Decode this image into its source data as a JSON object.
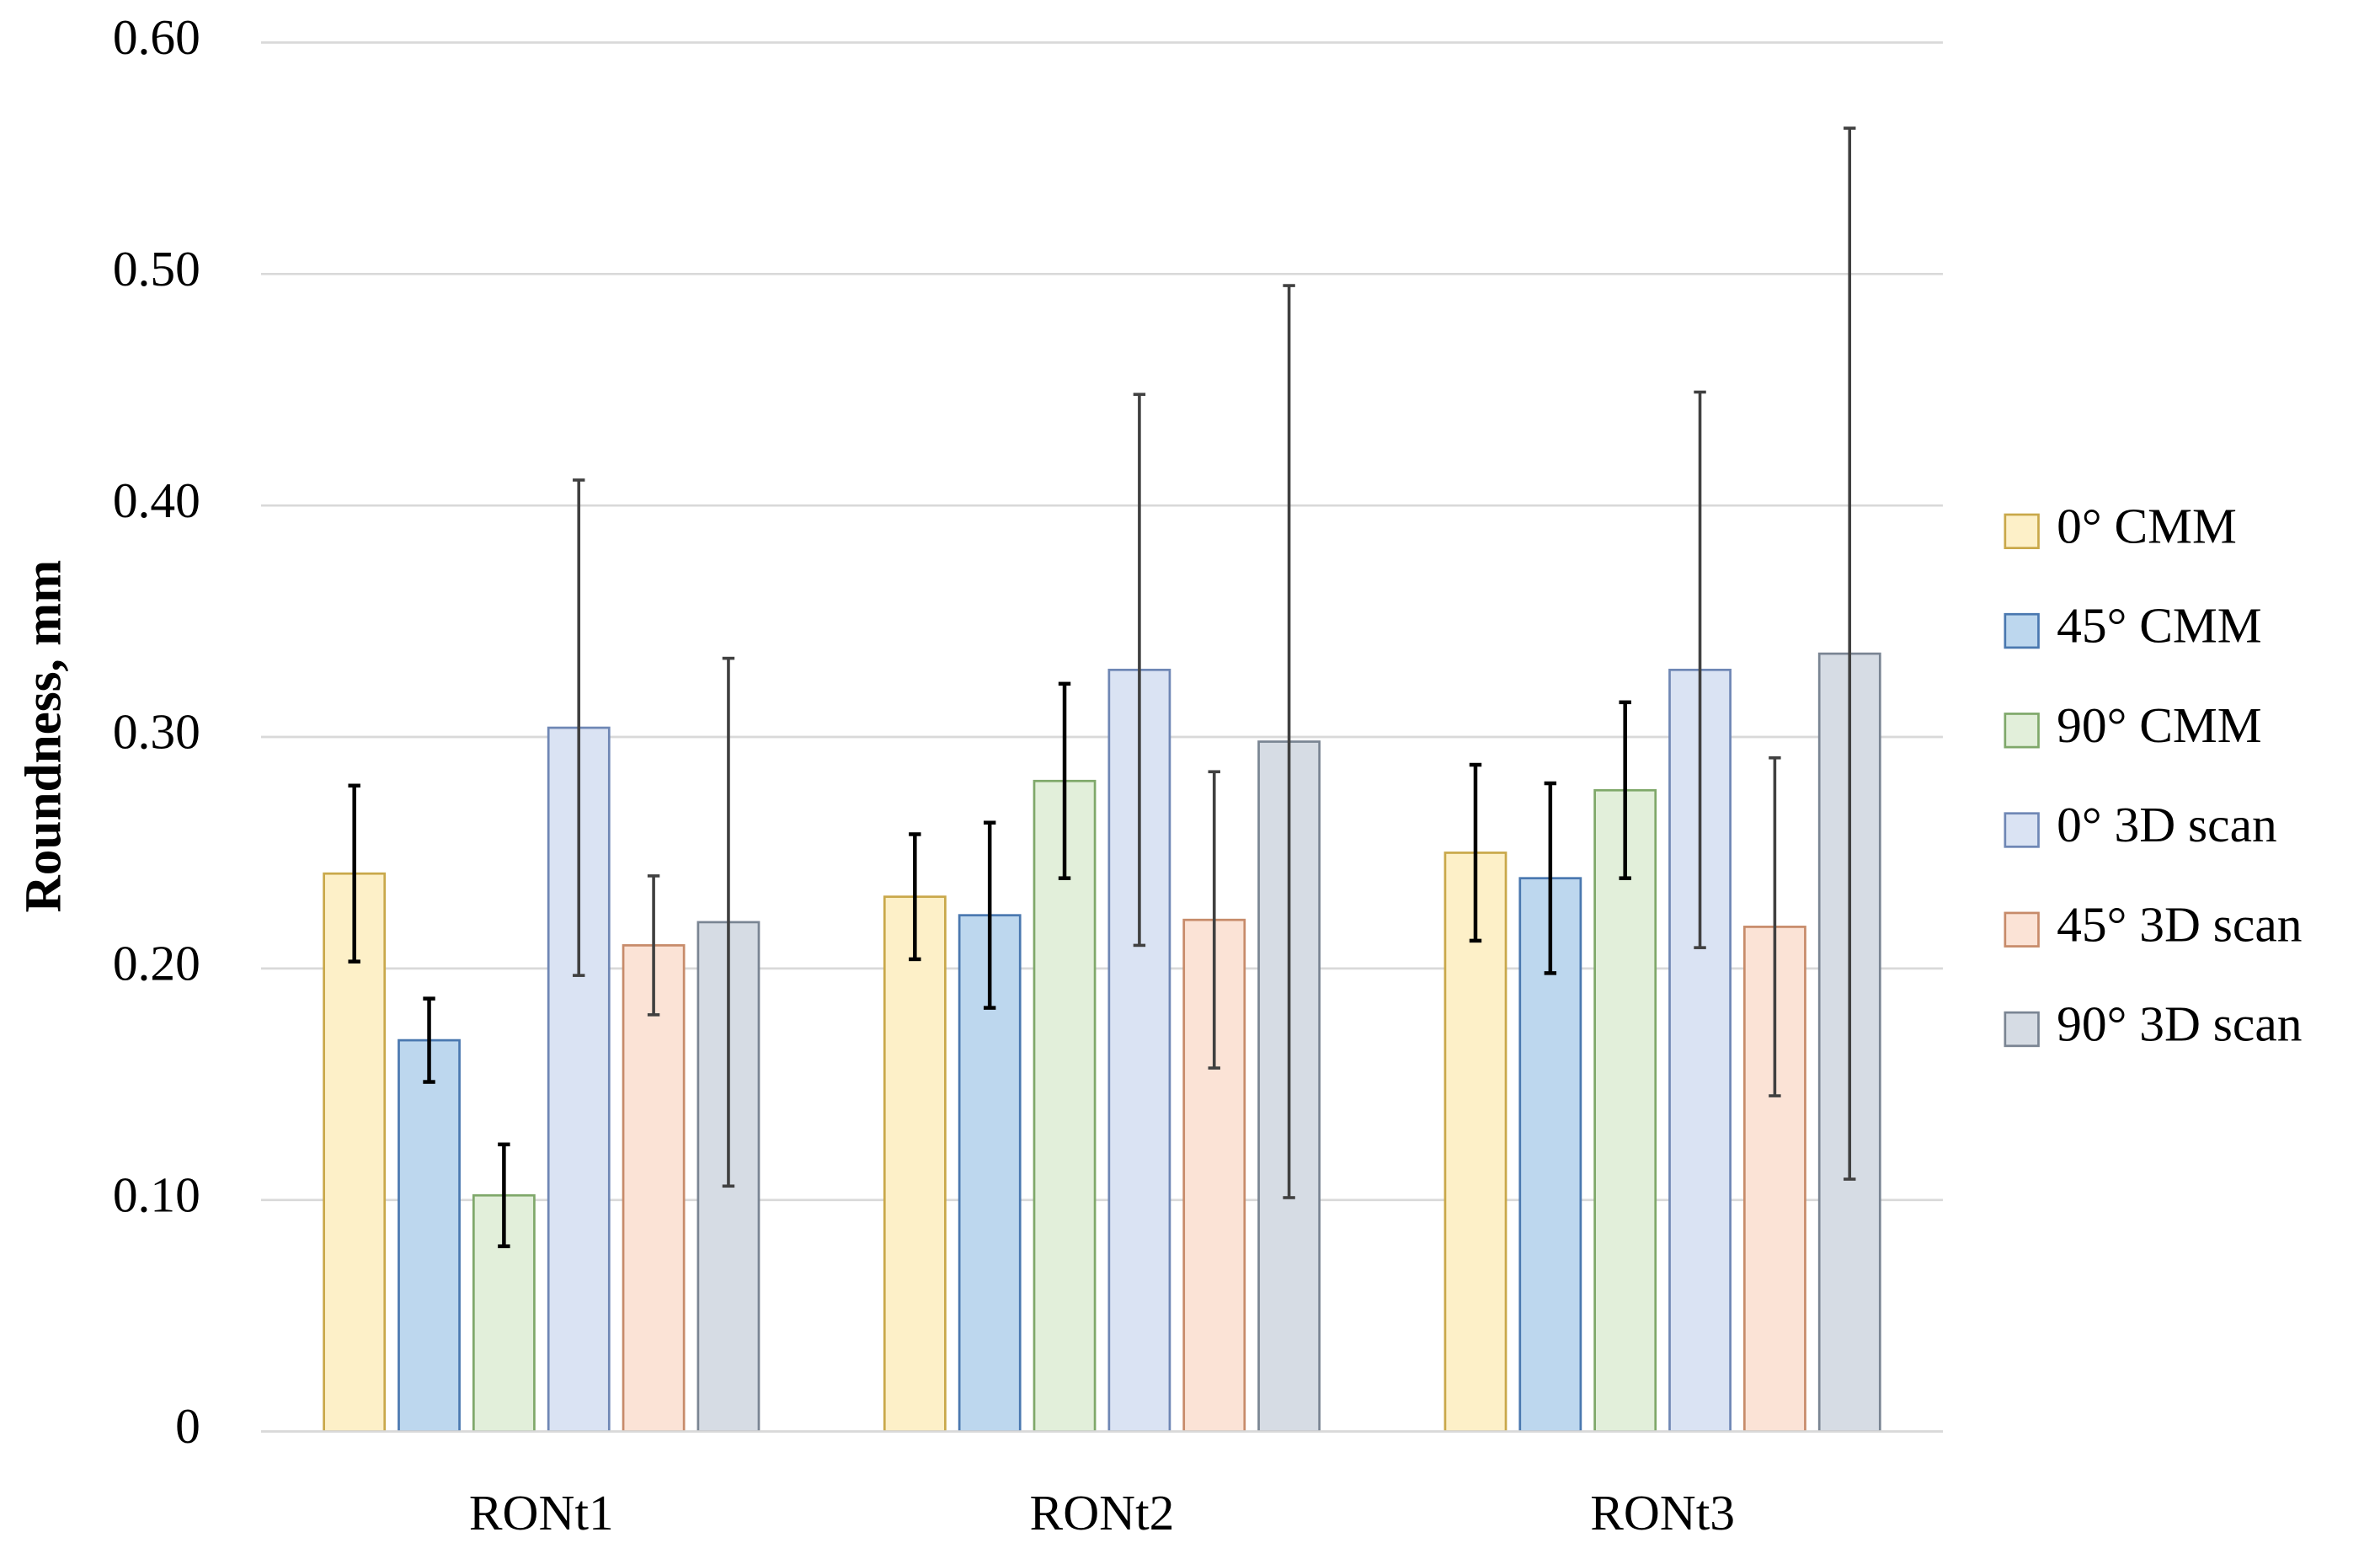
{
  "chart_data": {
    "type": "bar",
    "y_label": "Roundness, mm",
    "categories": [
      "RONt1",
      "RONt2",
      "RONt3"
    ],
    "series": [
      {
        "name": "0° CMM",
        "color": "#fdf0c8",
        "edge_color": "#c9a84a",
        "error_color": "#000000",
        "values": [
          0.241,
          0.231,
          0.25
        ],
        "errors": [
          0.038,
          0.027,
          0.038
        ]
      },
      {
        "name": "45° CMM",
        "color": "#bdd7ee",
        "edge_color": "#4a78b0",
        "error_color": "#000000",
        "values": [
          0.169,
          0.223,
          0.239
        ],
        "errors": [
          0.018,
          0.04,
          0.041
        ]
      },
      {
        "name": "90° CMM",
        "color": "#e2efda",
        "edge_color": "#7fa86a",
        "error_color": "#000000",
        "values": [
          0.102,
          0.281,
          0.277
        ],
        "errors": [
          0.022,
          0.042,
          0.038
        ]
      },
      {
        "name": "0° 3D scan",
        "color": "#dae3f3",
        "edge_color": "#6f87b5",
        "error_color": "#404040",
        "values": [
          0.304,
          0.329,
          0.329
        ],
        "errors": [
          0.107,
          0.119,
          0.12
        ]
      },
      {
        "name": "45° 3D scan",
        "color": "#fbe3d6",
        "edge_color": "#c78b6a",
        "error_color": "#404040",
        "values": [
          0.21,
          0.221,
          0.218
        ],
        "errors": [
          0.03,
          0.064,
          0.073
        ]
      },
      {
        "name": "90° 3D scan",
        "color": "#d6dce4",
        "edge_color": "#7a8593",
        "error_color": "#404040",
        "values": [
          0.22,
          0.298,
          0.336
        ],
        "errors": [
          0.114,
          0.197,
          0.227
        ]
      }
    ],
    "ylim": [
      0,
      0.6
    ],
    "yticks": [
      0,
      {
        "value": 0.1,
        "label": "0.10"
      },
      {
        "value": 0.2,
        "label": "0.20"
      },
      {
        "value": 0.3,
        "label": "0.30"
      },
      {
        "value": 0.4,
        "label": "0.40"
      },
      {
        "value": 0.5,
        "label": "0.50"
      },
      {
        "value": 0.6,
        "label": "0.60"
      }
    ],
    "grid": true,
    "legend": "right"
  }
}
